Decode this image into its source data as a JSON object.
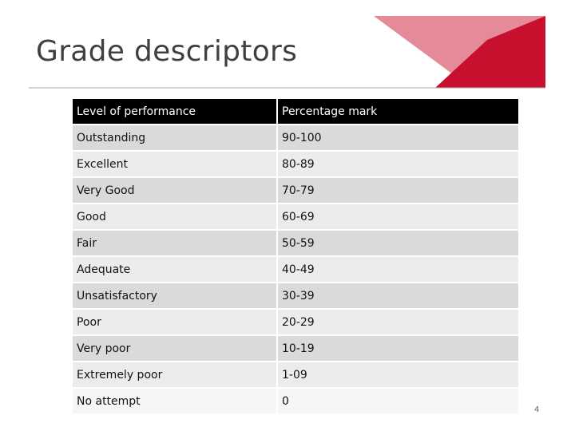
{
  "title": "Grade descriptors",
  "table": {
    "header": [
      "Level of performance",
      "Percentage mark"
    ],
    "rows": [
      [
        "Outstanding",
        "90-100"
      ],
      [
        "Excellent",
        "80-89"
      ],
      [
        "Very Good",
        "70-79"
      ],
      [
        "Good",
        "60-69"
      ],
      [
        "Fair",
        "50-59"
      ],
      [
        "Adequate",
        "40-49"
      ],
      [
        "Unsatisfactory",
        "30-39"
      ],
      [
        "Poor",
        "20-29"
      ],
      [
        "Very poor",
        "10-19"
      ],
      [
        "Extremely poor",
        "1-09"
      ],
      [
        "No attempt",
        "0"
      ]
    ]
  },
  "page_number": "4"
}
